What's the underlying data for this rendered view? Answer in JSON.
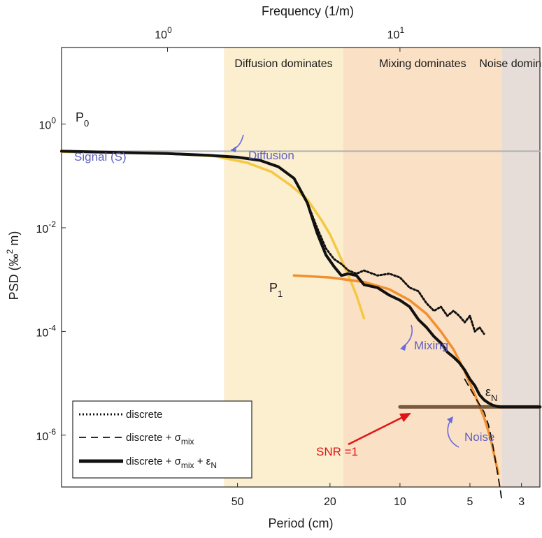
{
  "chart_data": {
    "type": "line",
    "title": "",
    "xlabel": "Period (cm)",
    "ylabel": "PSD (‰² m)",
    "x2label": "Frequency (1/m)",
    "xlabel_text": "Period (cm)",
    "ylabel_main": "PSD (‰",
    "ylabel_sup": "2",
    "ylabel_end": " m)",
    "xlim_frequency": [
      0.35,
      40
    ],
    "ylim": [
      1e-07,
      30
    ],
    "yscale": "log",
    "xscale": "log",
    "grid": false,
    "bottom_ticks": [
      {
        "label": "50",
        "freq": 2
      },
      {
        "label": "20",
        "freq": 5
      },
      {
        "label": "10",
        "freq": 10
      },
      {
        "label": "5",
        "freq": 20
      },
      {
        "label": "3",
        "freq": 33.33
      }
    ],
    "top_ticks": [
      {
        "base": "10",
        "exp": "0",
        "freq": 1
      },
      {
        "base": "10",
        "exp": "1",
        "freq": 10
      }
    ],
    "y_ticks": [
      {
        "base": "10",
        "exp": "0",
        "value": 1
      },
      {
        "base": "10",
        "exp": "-2",
        "value": 0.01
      },
      {
        "base": "10",
        "exp": "-4",
        "value": 0.0001
      },
      {
        "base": "10",
        "exp": "-6",
        "value": 1e-06
      }
    ],
    "regions": [
      {
        "name": "Diffusion dominates",
        "freq_range": [
          1.75,
          5.7
        ],
        "color": "#fbefcf"
      },
      {
        "name": "Mixing dominates",
        "freq_range": [
          5.7,
          27.5
        ],
        "color": "#fae0c4"
      },
      {
        "name": "Noise dominates",
        "freq_range": [
          27.5,
          40
        ],
        "color": "#e6ddd8"
      }
    ],
    "series": [
      {
        "name": "P0 level",
        "style": "solid-gray",
        "color": "#b0b0b0",
        "x": [
          0.35,
          40
        ],
        "y": [
          0.3,
          0.3
        ]
      },
      {
        "name": "Signal (S) diffusion model",
        "style": "solid",
        "color": "#f5c842",
        "x": [
          0.35,
          1,
          1.6,
          2.2,
          2.8,
          3.4,
          4,
          4.6,
          5,
          5.4,
          6,
          6.5,
          7
        ],
        "y": [
          0.29,
          0.27,
          0.24,
          0.18,
          0.12,
          0.065,
          0.035,
          0.014,
          0.0075,
          0.0035,
          0.0012,
          0.0005,
          0.00018
        ]
      },
      {
        "name": "Mixing model",
        "style": "solid",
        "color": "#f29030",
        "x": [
          3.5,
          5,
          7,
          9,
          11,
          13,
          15,
          17,
          19,
          21,
          23,
          24.5,
          26.5
        ],
        "y": [
          0.0012,
          0.0011,
          0.0009,
          0.00065,
          0.0004,
          0.00022,
          0.0001,
          4.5e-05,
          1.7e-05,
          6e-06,
          2.2e-06,
          9e-07,
          1.8e-07
        ]
      },
      {
        "name": "Noise level εN",
        "style": "solid-brown",
        "color": "#7a5a3c",
        "x": [
          10,
          40
        ],
        "y": [
          3.5e-06,
          3.5e-06
        ]
      },
      {
        "name": "discrete",
        "style": "dotted",
        "color": "#111111",
        "x": [
          0.35,
          1,
          1.5,
          2,
          2.5,
          3,
          3.5,
          4,
          4.4,
          4.8,
          5.2,
          5.6,
          6,
          6.5,
          7,
          8,
          9,
          10,
          11,
          12,
          13,
          14,
          15,
          16,
          17,
          18,
          19,
          20,
          21,
          22,
          23
        ],
        "y": [
          0.3,
          0.27,
          0.25,
          0.23,
          0.2,
          0.15,
          0.09,
          0.03,
          0.01,
          0.004,
          0.0025,
          0.002,
          0.0015,
          0.0013,
          0.0015,
          0.0012,
          0.0013,
          0.0011,
          0.0007,
          0.0006,
          0.00035,
          0.00025,
          0.0003,
          0.0002,
          0.00025,
          0.0002,
          0.00015,
          0.0002,
          0.0001,
          0.00012,
          9e-05
        ]
      },
      {
        "name": "discrete + σmix",
        "style": "dashed",
        "color": "#111111",
        "x": [
          19,
          21,
          23,
          24,
          25,
          26,
          27,
          27.5
        ],
        "y": [
          1.2e-05,
          5.5e-06,
          2.8e-06,
          1.6e-06,
          7e-07,
          2.5e-07,
          9e-08,
          5e-08
        ]
      },
      {
        "name": "discrete + σmix + εN",
        "style": "solid-thick",
        "color": "#111111",
        "x": [
          0.35,
          1,
          1.5,
          2,
          2.5,
          3,
          3.5,
          4,
          4.4,
          4.8,
          5.2,
          5.6,
          6,
          6.5,
          7,
          8,
          9,
          10,
          11,
          12,
          13,
          14,
          15,
          16,
          17,
          18,
          19,
          20,
          21,
          22,
          23,
          24,
          25,
          26,
          27,
          28,
          30,
          33,
          36,
          40
        ],
        "y": [
          0.3,
          0.27,
          0.25,
          0.23,
          0.2,
          0.15,
          0.09,
          0.03,
          0.008,
          0.003,
          0.0018,
          0.0012,
          0.0013,
          0.0012,
          0.0008,
          0.0007,
          0.0005,
          0.0004,
          0.0003,
          0.00017,
          0.00012,
          8e-05,
          6e-05,
          4e-05,
          3.2e-05,
          2.5e-05,
          1.8e-05,
          1.2e-05,
          9e-06,
          6e-06,
          4.8e-06,
          4.2e-06,
          3.8e-06,
          3.6e-06,
          3.5e-06,
          3.5e-06,
          3.5e-06,
          3.5e-06,
          3.5e-06,
          3.5e-06
        ]
      }
    ],
    "annotations": {
      "p0": {
        "base": "P",
        "sub": "0"
      },
      "p1": {
        "base": "P",
        "sub": "1"
      },
      "epsN": {
        "base": "ε",
        "sub": "N"
      },
      "signal": "Signal (S)",
      "diffusion": "Diffusion",
      "mixing": "Mixing",
      "noise": "Noise",
      "snr": "SNR =1"
    },
    "legend": {
      "position": "bottom-left",
      "entries": [
        {
          "style": "dotted",
          "text": "discrete",
          "sub": "",
          "suffix": ""
        },
        {
          "style": "dashed",
          "text": "discrete + σ",
          "sub": "mix",
          "suffix": ""
        },
        {
          "style": "solid-thick",
          "text": "discrete + σ",
          "sub": "mix",
          "suffix": " + ε",
          "sub2": "N"
        }
      ]
    }
  }
}
